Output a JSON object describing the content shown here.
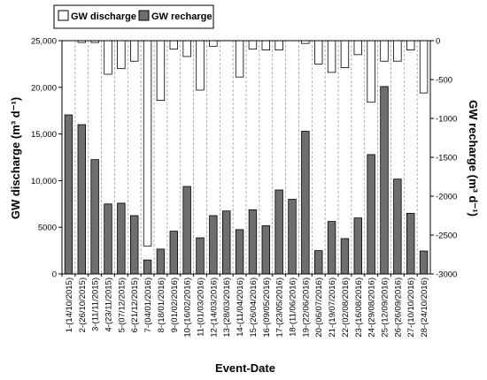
{
  "chart_data": {
    "type": "bar",
    "xlabel": "Event-Date",
    "ylabel_left": "GW discharge (m³ d⁻¹)",
    "ylabel_right": "GW recharge (m³ d⁻¹)",
    "left_axis": {
      "min": 0,
      "max": 25000,
      "ticks": [
        0,
        5000,
        10000,
        15000,
        20000,
        25000
      ],
      "tick_labels": [
        "0",
        "5000",
        "10,000",
        "15,000",
        "20,000",
        "25,000"
      ]
    },
    "right_axis": {
      "min": -3000,
      "max": 0,
      "ticks": [
        -3000,
        -2500,
        -2000,
        -1500,
        -1000,
        -500,
        0
      ],
      "tick_labels": [
        "-3000",
        "-2500",
        "-2000",
        "-1500",
        "-1000",
        "-500",
        "0"
      ]
    },
    "grid": "vertical-dashed",
    "legend": {
      "position": "top-left",
      "entries": [
        "GW discharge",
        "GW recharge"
      ]
    },
    "categories": [
      "1-(14/10/2015)",
      "2-(26/10/2015)",
      "3-(11/11/2015)",
      "4-(23/11/2015)",
      "5-(07/12/2015)",
      "6-(21/12/2015)",
      "7-(04/01/2016)",
      "8-(18/01/2016)",
      "9-(01/02/2016)",
      "10-(16/02/2016)",
      "11-(01/03/2016)",
      "12-(14/03/2016)",
      "13-(28/03/2016)",
      "14-(11/04/2016)",
      "15-(26/04/2016)",
      "16-(09/05/2016)",
      "17-(23/05/2016)",
      "18-(11/06/2016)",
      "19-(22/06/2016)",
      "20-(06/07/2016)",
      "21-(19/07/2016)",
      "22-(02/08/2016)",
      "23-(16/08/2016)",
      "24-(29/08/2016)",
      "25-(12/09/2016)",
      "26-(26/09/2016)",
      "27-(10/10/2016)",
      "28-(24/10/2016)"
    ],
    "series": [
      {
        "name": "GW discharge",
        "axis": "left",
        "color": "#ffffff",
        "values": [
          0,
          200,
          200,
          3600,
          3000,
          2200,
          22000,
          6400,
          900,
          1700,
          5300,
          600,
          0,
          3900,
          900,
          1000,
          1000,
          0,
          300,
          2500,
          3400,
          2900,
          1500,
          6600,
          2200,
          2200,
          1000,
          5600
        ]
      },
      {
        "name": "GW recharge",
        "axis": "right",
        "color": "#6e6e6e",
        "values": [
          -955,
          -1080,
          -1530,
          -2100,
          -2090,
          -2250,
          -2820,
          -2680,
          -2450,
          -1875,
          -2535,
          -2250,
          -2190,
          -2430,
          -2175,
          -2380,
          -1920,
          -2040,
          -1165,
          -2700,
          -2325,
          -2545,
          -2280,
          -1465,
          -590,
          -1780,
          -2220,
          -2705
        ]
      }
    ]
  }
}
